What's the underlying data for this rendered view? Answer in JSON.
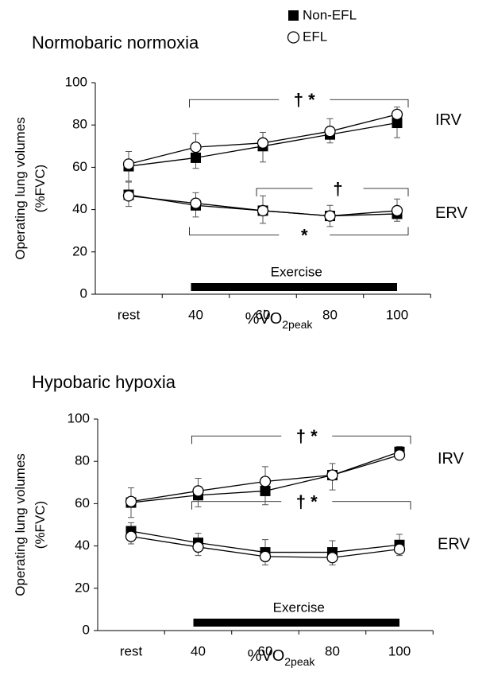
{
  "legend": [
    {
      "name": "Non-EFL",
      "marker": "square",
      "color": "#000000",
      "fill": "#000000"
    },
    {
      "name": "EFL",
      "marker": "circle",
      "color": "#000000",
      "fill": "#ffffff"
    }
  ],
  "chart_data": [
    {
      "type": "line",
      "title": "Normobaric normoxia",
      "ylabel": [
        "Operating lung volumes",
        "(%FVC)"
      ],
      "xlabel": {
        "main": "%V̇O",
        "sub": "2peak"
      },
      "categories": [
        "rest",
        "40",
        "60",
        "80",
        "100"
      ],
      "ylim": [
        0,
        100
      ],
      "yticks": [
        0,
        20,
        40,
        60,
        80,
        100
      ],
      "curves": [
        {
          "label": "IRV",
          "series": [
            {
              "values": [
                60.5,
                64.5,
                70,
                75.5,
                81
              ],
              "errors": [
                7,
                5,
                7.5,
                4,
                7
              ]
            },
            {
              "values": [
                61.5,
                69.5,
                71.5,
                77,
                85
              ],
              "errors": [
                6,
                6.5,
                5,
                6,
                3.5
              ]
            }
          ]
        },
        {
          "label": "ERV",
          "series": [
            {
              "values": [
                47,
                42,
                39.5,
                37,
                38
              ],
              "errors": [
                6,
                6,
                7,
                5,
                7
              ]
            },
            {
              "values": [
                46.5,
                43,
                39.5,
                37,
                39.5
              ],
              "errors": [
                5,
                6.5,
                6,
                5,
                5
              ]
            }
          ]
        }
      ],
      "annotations": [
        "† *",
        "†",
        "*"
      ],
      "bar_label": "Exercise"
    },
    {
      "type": "line",
      "title": "Hypobaric hypoxia",
      "ylabel": [
        "Operating lung volumes",
        "(%FVC)"
      ],
      "xlabel": {
        "main": "%V̇O",
        "sub": "2peak"
      },
      "categories": [
        "rest",
        "40",
        "60",
        "80",
        "100"
      ],
      "ylim": [
        0,
        100
      ],
      "yticks": [
        0,
        20,
        40,
        60,
        80,
        100
      ],
      "curves": [
        {
          "label": "IRV",
          "series": [
            {
              "values": [
                60.5,
                64,
                66,
                73.5,
                84.5
              ],
              "errors": [
                7,
                5.5,
                6.5,
                7,
                3
              ]
            },
            {
              "values": [
                61,
                66,
                70.5,
                73.5,
                83
              ],
              "errors": [
                6.5,
                6,
                7,
                5.5,
                4
              ]
            }
          ]
        },
        {
          "label": "ERV",
          "series": [
            {
              "values": [
                47,
                41.5,
                37,
                37,
                40.5
              ],
              "errors": [
                4,
                4.5,
                6,
                5.5,
                5
              ]
            },
            {
              "values": [
                44.5,
                39.5,
                35,
                34.5,
                38.5
              ],
              "errors": [
                3.5,
                4,
                4,
                3.5,
                3
              ]
            }
          ]
        }
      ],
      "annotations": [
        "† *",
        "† *"
      ],
      "bar_label": "Exercise"
    }
  ]
}
